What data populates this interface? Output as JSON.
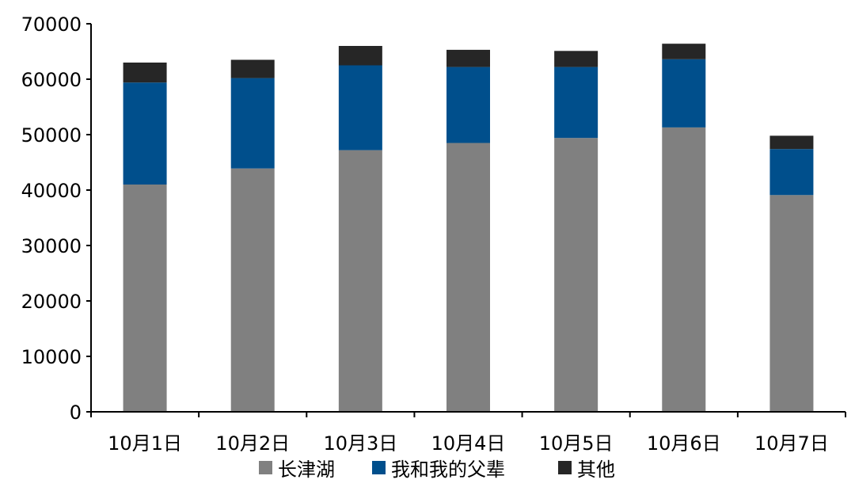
{
  "chart_data": {
    "type": "bar",
    "stacked": true,
    "categories": [
      "10月1日",
      "10月2日",
      "10月3日",
      "10月4日",
      "10月5日",
      "10月6日",
      "10月7日"
    ],
    "series": [
      {
        "name": "长津湖",
        "color": "#808080",
        "values": [
          41000,
          43900,
          47200,
          48500,
          49400,
          51300,
          39100
        ]
      },
      {
        "name": "我和我的父辈",
        "color": "#004f8c",
        "values": [
          18400,
          16300,
          15300,
          13700,
          12800,
          12300,
          8300
        ]
      },
      {
        "name": "其他",
        "color": "#262626",
        "values": [
          3600,
          3300,
          3500,
          3100,
          2900,
          2800,
          2400
        ]
      }
    ],
    "ylim": [
      0,
      70000
    ],
    "yticks": [
      "0",
      "10000",
      "20000",
      "30000",
      "40000",
      "50000",
      "60000",
      "70000"
    ],
    "legend_position": "bottom",
    "grid": false
  }
}
